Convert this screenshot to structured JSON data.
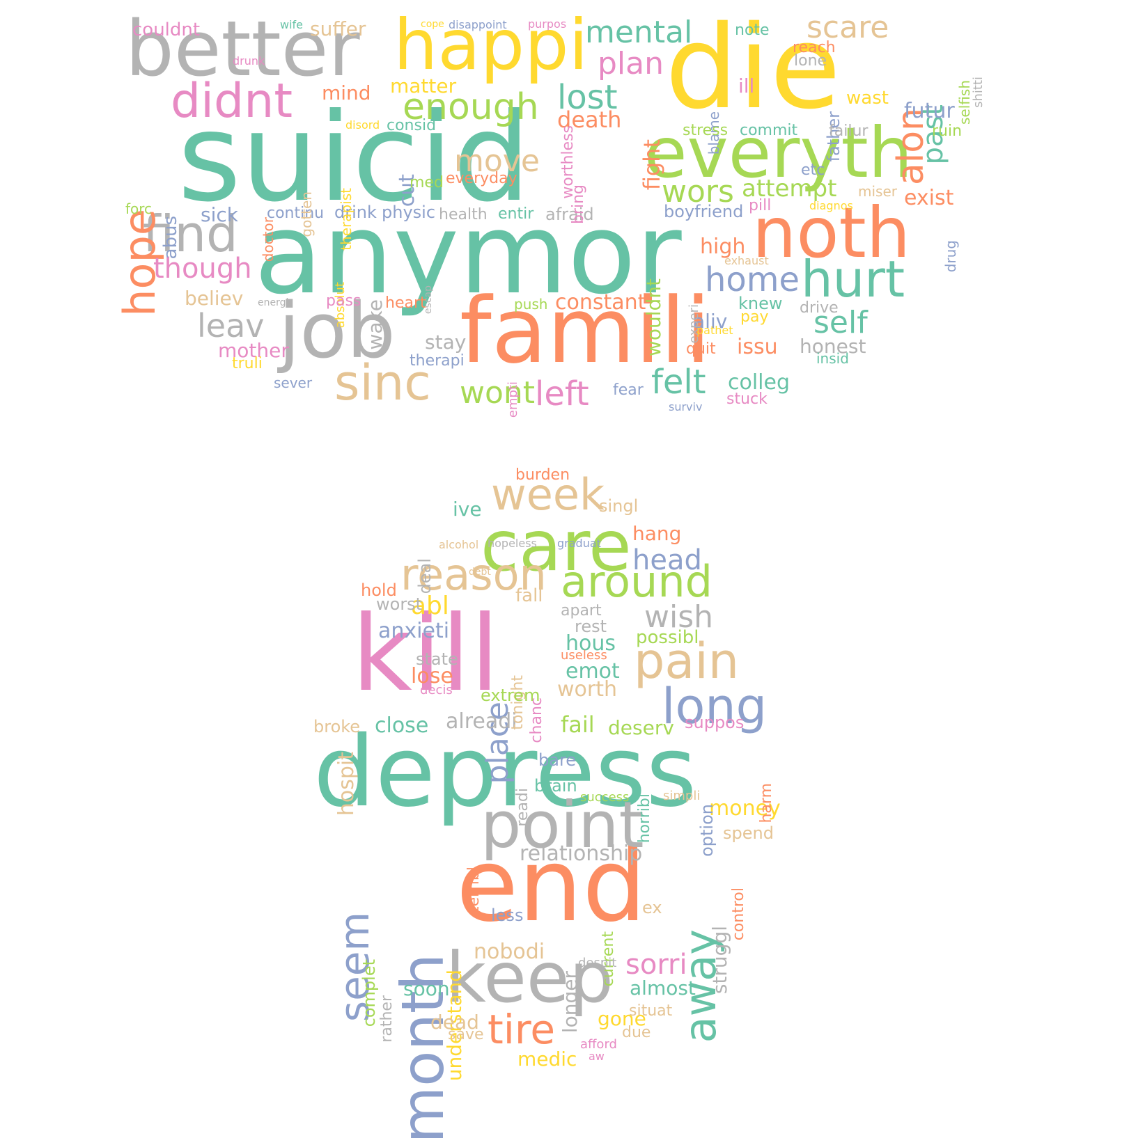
{
  "palette": {
    "teal": "#66c2a5",
    "orange": "#fc8d62",
    "blue": "#8da0cb",
    "pink": "#e78ac3",
    "green": "#a6d854",
    "yellow": "#ffd92f",
    "tan": "#e5c494",
    "gray": "#b3b3b3"
  },
  "clouds": [
    {
      "name": "top-cloud",
      "words": [
        {
          "text": "suicid",
          "color": "teal"
        },
        {
          "text": "anymor",
          "color": "teal"
        },
        {
          "text": "die",
          "color": "yellow"
        },
        {
          "text": "famili",
          "color": "orange"
        },
        {
          "text": "everyth",
          "color": "green"
        },
        {
          "text": "better",
          "color": "gray"
        },
        {
          "text": "happi",
          "color": "yellow"
        },
        {
          "text": "noth",
          "color": "orange"
        },
        {
          "text": "job",
          "color": "gray"
        },
        {
          "text": "didnt",
          "color": "pink"
        },
        {
          "text": "find",
          "color": "gray"
        },
        {
          "text": "hurt",
          "color": "teal"
        },
        {
          "text": "sinc",
          "color": "tan"
        },
        {
          "text": "hope",
          "color": "orange"
        },
        {
          "text": "enough",
          "color": "green"
        },
        {
          "text": "mental",
          "color": "teal"
        },
        {
          "text": "scare",
          "color": "tan"
        },
        {
          "text": "lost",
          "color": "teal"
        },
        {
          "text": "alon",
          "color": "orange"
        },
        {
          "text": "plan",
          "color": "pink"
        },
        {
          "text": "home",
          "color": "blue"
        },
        {
          "text": "felt",
          "color": "teal"
        },
        {
          "text": "move",
          "color": "tan"
        },
        {
          "text": "wors",
          "color": "green"
        },
        {
          "text": "though",
          "color": "pink"
        },
        {
          "text": "leav",
          "color": "gray"
        },
        {
          "text": "self",
          "color": "teal"
        },
        {
          "text": "left",
          "color": "pink"
        },
        {
          "text": "wont",
          "color": "green"
        },
        {
          "text": "past",
          "color": "teal"
        },
        {
          "text": "attempt",
          "color": "green"
        },
        {
          "text": "death",
          "color": "orange"
        },
        {
          "text": "exist",
          "color": "orange"
        },
        {
          "text": "constant",
          "color": "orange"
        },
        {
          "text": "futur",
          "color": "blue"
        },
        {
          "text": "colleg",
          "color": "teal"
        },
        {
          "text": "matter",
          "color": "yellow"
        },
        {
          "text": "mind",
          "color": "orange"
        },
        {
          "text": "suffer",
          "color": "tan"
        },
        {
          "text": "couldnt",
          "color": "pink"
        },
        {
          "text": "ill",
          "color": "pink"
        },
        {
          "text": "fight",
          "color": "orange"
        },
        {
          "text": "cut",
          "color": "blue"
        },
        {
          "text": "high",
          "color": "orange"
        },
        {
          "text": "issu",
          "color": "orange"
        },
        {
          "text": "honest",
          "color": "gray"
        },
        {
          "text": "stay",
          "color": "gray"
        },
        {
          "text": "wake",
          "color": "gray"
        },
        {
          "text": "wouldnt",
          "color": "green"
        },
        {
          "text": "sick",
          "color": "blue"
        },
        {
          "text": "mother",
          "color": "pink"
        },
        {
          "text": "believ",
          "color": "tan"
        },
        {
          "text": "abus",
          "color": "blue"
        },
        {
          "text": "aliv",
          "color": "blue"
        },
        {
          "text": "knew",
          "color": "teal"
        },
        {
          "text": "therapi",
          "color": "blue"
        },
        {
          "text": "heart",
          "color": "orange"
        },
        {
          "text": "physic",
          "color": "blue"
        },
        {
          "text": "drink",
          "color": "blue"
        },
        {
          "text": "continu",
          "color": "blue"
        },
        {
          "text": "health",
          "color": "gray"
        },
        {
          "text": "entir",
          "color": "teal"
        },
        {
          "text": "afraid",
          "color": "gray"
        },
        {
          "text": "boyfriend",
          "color": "blue"
        },
        {
          "text": "ruin",
          "color": "green"
        },
        {
          "text": "wast",
          "color": "yellow"
        },
        {
          "text": "blame",
          "color": "blue"
        },
        {
          "text": "father",
          "color": "blue"
        },
        {
          "text": "commit",
          "color": "teal"
        },
        {
          "text": "stress",
          "color": "green"
        },
        {
          "text": "failur",
          "color": "gray"
        },
        {
          "text": "etc",
          "color": "blue"
        },
        {
          "text": "miser",
          "color": "tan"
        },
        {
          "text": "pill",
          "color": "pink"
        },
        {
          "text": "drug",
          "color": "blue"
        },
        {
          "text": "selfish",
          "color": "green"
        },
        {
          "text": "shitti",
          "color": "gray"
        },
        {
          "text": "reach",
          "color": "orange"
        },
        {
          "text": "lone",
          "color": "gray"
        },
        {
          "text": "note",
          "color": "teal"
        },
        {
          "text": "worthless",
          "color": "pink"
        },
        {
          "text": "bring",
          "color": "pink"
        },
        {
          "text": "everyday",
          "color": "orange"
        },
        {
          "text": "med",
          "color": "green"
        },
        {
          "text": "consid",
          "color": "teal"
        },
        {
          "text": "disord",
          "color": "yellow"
        },
        {
          "text": "therapist",
          "color": "yellow"
        },
        {
          "text": "gotten",
          "color": "tan"
        },
        {
          "text": "doctor",
          "color": "orange"
        },
        {
          "text": "forc",
          "color": "green"
        },
        {
          "text": "absolut",
          "color": "yellow"
        },
        {
          "text": "escap",
          "color": "gray"
        },
        {
          "text": "pass",
          "color": "pink"
        },
        {
          "text": "energi",
          "color": "gray"
        },
        {
          "text": "truli",
          "color": "yellow"
        },
        {
          "text": "sever",
          "color": "blue"
        },
        {
          "text": "empti",
          "color": "pink"
        },
        {
          "text": "fear",
          "color": "blue"
        },
        {
          "text": "surviv",
          "color": "blue"
        },
        {
          "text": "stuck",
          "color": "pink"
        },
        {
          "text": "pathet",
          "color": "yellow"
        },
        {
          "text": "quit",
          "color": "orange"
        },
        {
          "text": "pay",
          "color": "yellow"
        },
        {
          "text": "push",
          "color": "green"
        },
        {
          "text": "experi",
          "color": "gray"
        },
        {
          "text": "drive",
          "color": "gray"
        },
        {
          "text": "insid",
          "color": "teal"
        },
        {
          "text": "exhaust",
          "color": "tan"
        },
        {
          "text": "diagnos",
          "color": "yellow"
        },
        {
          "text": "wife",
          "color": "teal"
        },
        {
          "text": "drunk",
          "color": "pink"
        },
        {
          "text": "cope",
          "color": "yellow"
        },
        {
          "text": "disappoint",
          "color": "blue"
        },
        {
          "text": "purpos",
          "color": "pink"
        }
      ]
    },
    {
      "name": "bottom-cloud",
      "words": [
        {
          "text": "kill",
          "color": "pink"
        },
        {
          "text": "depress",
          "color": "teal"
        },
        {
          "text": "end",
          "color": "orange"
        },
        {
          "text": "care",
          "color": "green"
        },
        {
          "text": "point",
          "color": "gray"
        },
        {
          "text": "keep",
          "color": "gray"
        },
        {
          "text": "month",
          "color": "blue"
        },
        {
          "text": "week",
          "color": "tan"
        },
        {
          "text": "reason",
          "color": "tan"
        },
        {
          "text": "around",
          "color": "green"
        },
        {
          "text": "pain",
          "color": "tan"
        },
        {
          "text": "long",
          "color": "blue"
        },
        {
          "text": "away",
          "color": "teal"
        },
        {
          "text": "seem",
          "color": "blue"
        },
        {
          "text": "wish",
          "color": "gray"
        },
        {
          "text": "head",
          "color": "blue"
        },
        {
          "text": "tire",
          "color": "orange"
        },
        {
          "text": "place",
          "color": "blue"
        },
        {
          "text": "sorri",
          "color": "pink"
        },
        {
          "text": "relationship",
          "color": "gray"
        },
        {
          "text": "abl",
          "color": "yellow"
        },
        {
          "text": "anxieti",
          "color": "blue"
        },
        {
          "text": "hous",
          "color": "teal"
        },
        {
          "text": "nobodi",
          "color": "tan"
        },
        {
          "text": "alreadi",
          "color": "gray"
        },
        {
          "text": "close",
          "color": "teal"
        },
        {
          "text": "emot",
          "color": "teal"
        },
        {
          "text": "worth",
          "color": "tan"
        },
        {
          "text": "lose",
          "color": "orange"
        },
        {
          "text": "hospit",
          "color": "tan"
        },
        {
          "text": "understand",
          "color": "yellow"
        },
        {
          "text": "longer",
          "color": "gray"
        },
        {
          "text": "almost",
          "color": "teal"
        },
        {
          "text": "money",
          "color": "yellow"
        },
        {
          "text": "deserv",
          "color": "green"
        },
        {
          "text": "fail",
          "color": "green"
        },
        {
          "text": "ive",
          "color": "teal"
        },
        {
          "text": "hang",
          "color": "orange"
        },
        {
          "text": "soon",
          "color": "teal"
        },
        {
          "text": "gone",
          "color": "yellow"
        },
        {
          "text": "dead",
          "color": "tan"
        },
        {
          "text": "medic",
          "color": "yellow"
        },
        {
          "text": "struggl",
          "color": "gray"
        },
        {
          "text": "complet",
          "color": "green"
        },
        {
          "text": "deal",
          "color": "gray"
        },
        {
          "text": "burden",
          "color": "orange"
        },
        {
          "text": "singl",
          "color": "tan"
        },
        {
          "text": "possibl",
          "color": "green"
        },
        {
          "text": "rest",
          "color": "gray"
        },
        {
          "text": "apart",
          "color": "gray"
        },
        {
          "text": "fall",
          "color": "tan"
        },
        {
          "text": "tonight",
          "color": "tan"
        },
        {
          "text": "chanc",
          "color": "pink"
        },
        {
          "text": "useless",
          "color": "orange"
        },
        {
          "text": "extrem",
          "color": "green"
        },
        {
          "text": "state",
          "color": "gray"
        },
        {
          "text": "decis",
          "color": "pink"
        },
        {
          "text": "worst",
          "color": "gray"
        },
        {
          "text": "hold",
          "color": "orange"
        },
        {
          "text": "broke",
          "color": "tan"
        },
        {
          "text": "suppos",
          "color": "pink"
        },
        {
          "text": "horribl",
          "color": "teal"
        },
        {
          "text": "option",
          "color": "blue"
        },
        {
          "text": "harm",
          "color": "orange"
        },
        {
          "text": "bare",
          "color": "blue"
        },
        {
          "text": "readi",
          "color": "gray"
        },
        {
          "text": "brain",
          "color": "teal"
        },
        {
          "text": "success",
          "color": "green"
        },
        {
          "text": "simpli",
          "color": "tan"
        },
        {
          "text": "spend",
          "color": "tan"
        },
        {
          "text": "control",
          "color": "orange"
        },
        {
          "text": "terribl",
          "color": "orange"
        },
        {
          "text": "current",
          "color": "green"
        },
        {
          "text": "less",
          "color": "blue"
        },
        {
          "text": "ex",
          "color": "tan"
        },
        {
          "text": "despit",
          "color": "gray"
        },
        {
          "text": "rather",
          "color": "gray"
        },
        {
          "text": "situat",
          "color": "tan"
        },
        {
          "text": "due",
          "color": "tan"
        },
        {
          "text": "save",
          "color": "tan"
        },
        {
          "text": "afford",
          "color": "pink"
        },
        {
          "text": "aw",
          "color": "pink"
        },
        {
          "text": "alcohol",
          "color": "tan"
        },
        {
          "text": "hopeless",
          "color": "gray"
        },
        {
          "text": "graduat",
          "color": "blue"
        },
        {
          "text": "debt",
          "color": "tan"
        }
      ]
    }
  ]
}
